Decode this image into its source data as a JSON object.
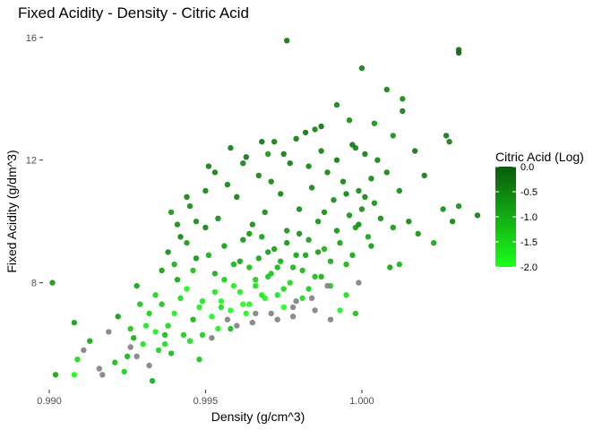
{
  "chart_data": {
    "type": "scatter",
    "title": "Fixed Acidity - Density - Citric Acid",
    "xlabel": "Density (g/cm^3)",
    "ylabel": "Fixed Acidity (g/dm^3)",
    "xlim": [
      0.9898,
      1.0039
    ],
    "ylim": [
      4.6,
      16.2
    ],
    "x_ticks": [
      {
        "value": 0.99,
        "label": "0.990"
      },
      {
        "value": 0.995,
        "label": "0.995"
      },
      {
        "value": 1.0,
        "label": "1.000"
      }
    ],
    "y_ticks": [
      {
        "value": 8,
        "label": "8"
      },
      {
        "value": 12,
        "label": "12"
      },
      {
        "value": 16,
        "label": "16"
      }
    ],
    "grid": false,
    "legend": {
      "title": "Citric Acid (Log)",
      "placement": "right",
      "range": [
        -2.0,
        0.0
      ],
      "ticks": [
        {
          "value": 0.0,
          "label": "0.0"
        },
        {
          "value": -0.5,
          "label": "-0.5"
        },
        {
          "value": -1.0,
          "label": "-1.0"
        },
        {
          "value": -1.5,
          "label": "-1.5"
        },
        {
          "value": -2.0,
          "label": "-2.0"
        }
      ],
      "color_low": "#1aff1a",
      "color_high": "#0b5a0b",
      "na_color": "#7f7f7f"
    },
    "points": [
      [
        0.9976,
        15.9,
        -0.3
      ],
      [
        1.0031,
        15.6,
        -0.2
      ],
      [
        1.0031,
        15.5,
        -0.1
      ],
      [
        1.0,
        15.0,
        -0.4
      ],
      [
        1.0008,
        14.3,
        -0.5
      ],
      [
        1.0013,
        14.0,
        -0.6
      ],
      [
        0.9992,
        13.8,
        -0.5
      ],
      [
        1.0013,
        13.6,
        -0.4
      ],
      [
        0.9996,
        13.3,
        -0.6
      ],
      [
        1.0004,
        13.2,
        -0.7
      ],
      [
        0.9985,
        13.0,
        -0.5
      ],
      [
        1.0027,
        12.8,
        -0.3
      ],
      [
        1.0028,
        12.6,
        -0.4
      ],
      [
        1.001,
        12.8,
        -0.6
      ],
      [
        0.997,
        12.2,
        -0.7
      ],
      [
        0.9998,
        12.4,
        -0.5
      ],
      [
        1.0031,
        10.5,
        -0.6
      ],
      [
        1.0037,
        10.2,
        -0.4
      ],
      [
        1.0029,
        10.0,
        -0.5
      ],
      [
        1.0026,
        10.4,
        -0.6
      ],
      [
        1.0023,
        9.3,
        -0.9
      ],
      [
        1.0012,
        8.6,
        -1.1
      ],
      [
        1.0009,
        8.5,
        -0.9
      ],
      [
        0.999,
        6.8,
        null
      ],
      [
        0.9998,
        7.0,
        -1.3
      ],
      [
        0.9995,
        7.6,
        -1.6
      ],
      [
        0.9999,
        8.0,
        null
      ],
      [
        0.9993,
        7.1,
        -1.8
      ],
      [
        0.9901,
        8.0,
        -0.7
      ],
      [
        0.9908,
        6.7,
        -0.8
      ],
      [
        0.9902,
        5.0,
        -0.9
      ],
      [
        0.9908,
        5.0,
        -1.9
      ],
      [
        0.9909,
        5.5,
        -1.5
      ],
      [
        0.9911,
        5.8,
        null
      ],
      [
        0.9913,
        6.1,
        -0.9
      ],
      [
        0.9916,
        5.2,
        null
      ],
      [
        0.9917,
        5.0,
        null
      ],
      [
        0.9919,
        6.4,
        null
      ],
      [
        0.9921,
        5.4,
        -1.2
      ],
      [
        0.9922,
        6.9,
        -0.8
      ],
      [
        0.9924,
        5.1,
        -1.4
      ],
      [
        0.9925,
        5.6,
        -1.1
      ],
      [
        0.9926,
        5.9,
        null
      ],
      [
        0.9927,
        6.2,
        -1.0
      ],
      [
        0.9928,
        7.9,
        -0.9
      ],
      [
        0.9929,
        7.3,
        -1.3
      ],
      [
        0.9931,
        6.6,
        -1.7
      ],
      [
        0.9932,
        5.3,
        null
      ],
      [
        0.9933,
        4.8,
        -1.0
      ],
      [
        0.9934,
        7.6,
        -1.5
      ],
      [
        0.9936,
        8.4,
        -0.8
      ],
      [
        0.9937,
        6.0,
        -1.6
      ],
      [
        0.9938,
        9.0,
        -0.6
      ],
      [
        0.9939,
        5.7,
        -1.2
      ],
      [
        0.994,
        7.0,
        -1.8
      ],
      [
        0.9941,
        8.1,
        -0.9
      ],
      [
        0.9942,
        9.5,
        -0.5
      ],
      [
        0.9943,
        6.3,
        -1.4
      ],
      [
        0.9944,
        7.8,
        -1.9
      ],
      [
        0.9945,
        10.5,
        -0.6
      ],
      [
        0.9946,
        6.8,
        -1.1
      ],
      [
        0.9947,
        8.8,
        -0.7
      ],
      [
        0.9948,
        5.5,
        -1.3
      ],
      [
        0.9949,
        7.4,
        -1.7
      ],
      [
        0.995,
        9.8,
        -0.5
      ],
      [
        0.9951,
        11.8,
        -0.4
      ],
      [
        0.9952,
        6.9,
        -1.9
      ],
      [
        0.9953,
        8.3,
        -1.0
      ],
      [
        0.9954,
        10.1,
        -0.6
      ],
      [
        0.9955,
        7.2,
        -1.6
      ],
      [
        0.9956,
        9.2,
        -0.8
      ],
      [
        0.9957,
        11.2,
        -0.5
      ],
      [
        0.9958,
        6.5,
        -1.2
      ],
      [
        0.9959,
        7.9,
        -1.8
      ],
      [
        0.996,
        10.8,
        -0.4
      ],
      [
        0.9961,
        8.7,
        -0.9
      ],
      [
        0.9962,
        7.3,
        -2.0
      ],
      [
        0.9963,
        12.1,
        -0.3
      ],
      [
        0.9964,
        9.6,
        -0.7
      ],
      [
        0.9965,
        6.7,
        null
      ],
      [
        0.9966,
        8.1,
        -1.4
      ],
      [
        0.9967,
        11.5,
        -0.5
      ],
      [
        0.9968,
        7.6,
        -1.7
      ],
      [
        0.9969,
        10.3,
        -0.6
      ],
      [
        0.997,
        9.0,
        -0.8
      ],
      [
        0.9971,
        7.0,
        null
      ],
      [
        0.9972,
        12.6,
        -0.4
      ],
      [
        0.9973,
        8.5,
        -1.1
      ],
      [
        0.9974,
        10.9,
        -0.5
      ],
      [
        0.9975,
        7.8,
        -1.5
      ],
      [
        0.9976,
        9.7,
        -0.7
      ],
      [
        0.9977,
        11.9,
        -0.4
      ],
      [
        0.9978,
        6.9,
        null
      ],
      [
        0.9979,
        8.9,
        -0.9
      ],
      [
        0.998,
        10.4,
        -0.6
      ],
      [
        0.9981,
        7.5,
        -1.6
      ],
      [
        0.9982,
        12.9,
        -0.3
      ],
      [
        0.9983,
        9.4,
        -0.8
      ],
      [
        0.9984,
        11.1,
        -0.5
      ],
      [
        0.9985,
        8.2,
        -1.2
      ],
      [
        0.9986,
        10.0,
        -0.7
      ],
      [
        0.9987,
        12.3,
        -0.4
      ],
      [
        0.9988,
        9.1,
        -1.0
      ],
      [
        0.9989,
        11.6,
        -0.5
      ],
      [
        0.999,
        7.9,
        -1.4
      ],
      [
        0.9991,
        10.7,
        -0.6
      ],
      [
        0.9992,
        12.0,
        -0.4
      ],
      [
        0.9993,
        9.3,
        -0.9
      ],
      [
        0.9994,
        11.3,
        -0.5
      ],
      [
        0.9995,
        8.6,
        -1.1
      ],
      [
        0.9996,
        10.2,
        -0.7
      ],
      [
        0.9997,
        12.5,
        -0.3
      ],
      [
        0.9998,
        9.8,
        -0.8
      ],
      [
        0.9999,
        11.0,
        -0.6
      ],
      [
        1.0,
        10.4,
        -0.6
      ],
      [
        1.0001,
        12.2,
        -0.4
      ],
      [
        1.0002,
        9.5,
        -0.9
      ],
      [
        1.0003,
        11.4,
        -0.5
      ],
      [
        1.0004,
        10.6,
        -0.7
      ],
      [
        1.0005,
        12.0,
        -0.5
      ],
      [
        0.9955,
        7.4,
        -1.9
      ],
      [
        0.9958,
        7.1,
        -2.0
      ],
      [
        0.9961,
        7.7,
        -1.8
      ],
      [
        0.9964,
        7.3,
        -1.9
      ],
      [
        0.9966,
        7.9,
        -1.6
      ],
      [
        0.9969,
        7.5,
        -1.9
      ],
      [
        0.9971,
        8.3,
        -1.3
      ],
      [
        0.9973,
        7.6,
        -1.7
      ],
      [
        0.9975,
        7.2,
        -2.0
      ],
      [
        0.9977,
        8.0,
        -1.5
      ],
      [
        0.9979,
        7.4,
        null
      ],
      [
        0.9981,
        8.4,
        -1.1
      ],
      [
        0.9983,
        7.8,
        -1.4
      ],
      [
        0.9985,
        7.1,
        null
      ],
      [
        0.9987,
        8.2,
        -1.0
      ],
      [
        0.9964,
        8.5,
        -1.2
      ],
      [
        0.9967,
        8.8,
        -0.9
      ],
      [
        0.997,
        8.2,
        -1.3
      ],
      [
        0.9972,
        9.1,
        -0.8
      ],
      [
        0.9974,
        8.7,
        -1.0
      ],
      [
        0.9976,
        9.3,
        -0.7
      ],
      [
        0.9978,
        8.5,
        -1.1
      ],
      [
        0.998,
        9.6,
        -0.6
      ],
      [
        0.9982,
        8.9,
        -0.9
      ],
      [
        0.9962,
        9.4,
        -0.7
      ],
      [
        0.9965,
        9.9,
        -0.6
      ],
      [
        0.9968,
        9.5,
        -0.8
      ],
      [
        0.9963,
        7.0,
        -1.9
      ],
      [
        0.9956,
        8.1,
        -1.4
      ],
      [
        0.9959,
        8.6,
        -1.1
      ],
      [
        0.9953,
        7.7,
        -1.7
      ],
      [
        0.9951,
        8.9,
        -1.0
      ],
      [
        0.9948,
        7.2,
        -1.8
      ],
      [
        0.9946,
        8.4,
        -1.2
      ],
      [
        0.9944,
        9.3,
        -0.8
      ],
      [
        0.9942,
        7.5,
        -1.6
      ],
      [
        0.994,
        8.6,
        -1.0
      ],
      [
        0.9938,
        6.6,
        -1.5
      ],
      [
        0.9936,
        7.3,
        -1.3
      ],
      [
        0.9934,
        6.4,
        -1.8
      ],
      [
        0.9957,
        6.8,
        null
      ],
      [
        0.996,
        6.6,
        null
      ],
      [
        0.9966,
        7.0,
        null
      ],
      [
        0.9973,
        6.8,
        null
      ],
      [
        0.9978,
        7.2,
        null
      ],
      [
        0.9984,
        7.5,
        null
      ],
      [
        0.9989,
        7.9,
        null
      ],
      [
        0.9986,
        9.0,
        -0.8
      ],
      [
        0.9988,
        10.3,
        -0.6
      ],
      [
        0.999,
        8.7,
        -1.0
      ],
      [
        0.9992,
        9.7,
        -0.7
      ],
      [
        0.9995,
        10.9,
        -0.5
      ],
      [
        0.9997,
        8.9,
        -0.9
      ],
      [
        0.9999,
        9.9,
        -0.6
      ],
      [
        1.0001,
        10.8,
        -0.5
      ],
      [
        1.0003,
        9.2,
        -0.8
      ],
      [
        1.0006,
        10.1,
        -0.6
      ],
      [
        1.0008,
        11.6,
        -0.5
      ],
      [
        1.001,
        9.8,
        -0.7
      ],
      [
        1.0012,
        11.0,
        -0.6
      ],
      [
        1.0015,
        10.0,
        -0.5
      ],
      [
        1.0017,
        12.3,
        -0.3
      ],
      [
        1.002,
        11.5,
        -0.4
      ],
      [
        1.0018,
        9.6,
        -0.7
      ],
      [
        0.995,
        11.0,
        -0.5
      ],
      [
        0.9953,
        11.6,
        -0.4
      ],
      [
        0.9947,
        10.0,
        -0.6
      ],
      [
        0.9944,
        10.8,
        -0.5
      ],
      [
        0.9941,
        9.9,
        -0.6
      ],
      [
        0.9939,
        10.3,
        -0.7
      ],
      [
        0.9958,
        12.4,
        -0.4
      ],
      [
        0.9962,
        11.9,
        -0.5
      ],
      [
        0.9968,
        12.6,
        -0.3
      ],
      [
        0.9971,
        11.3,
        -0.5
      ],
      [
        0.9975,
        12.2,
        -0.4
      ],
      [
        0.9979,
        12.7,
        -0.4
      ],
      [
        0.9983,
        11.8,
        -0.5
      ],
      [
        0.9987,
        13.1,
        -0.3
      ],
      [
        0.9932,
        7.0,
        -1.4
      ],
      [
        0.993,
        6.0,
        -1.7
      ],
      [
        0.9928,
        5.6,
        null
      ],
      [
        0.9926,
        6.5,
        -1.3
      ],
      [
        0.9935,
        5.8,
        -1.5
      ],
      [
        0.9937,
        6.3,
        -1.2
      ],
      [
        0.9945,
        6.1,
        -1.6
      ],
      [
        0.9949,
        6.3,
        -1.4
      ],
      [
        0.9952,
        6.2,
        null
      ],
      [
        0.9954,
        6.5,
        -1.8
      ]
    ]
  }
}
